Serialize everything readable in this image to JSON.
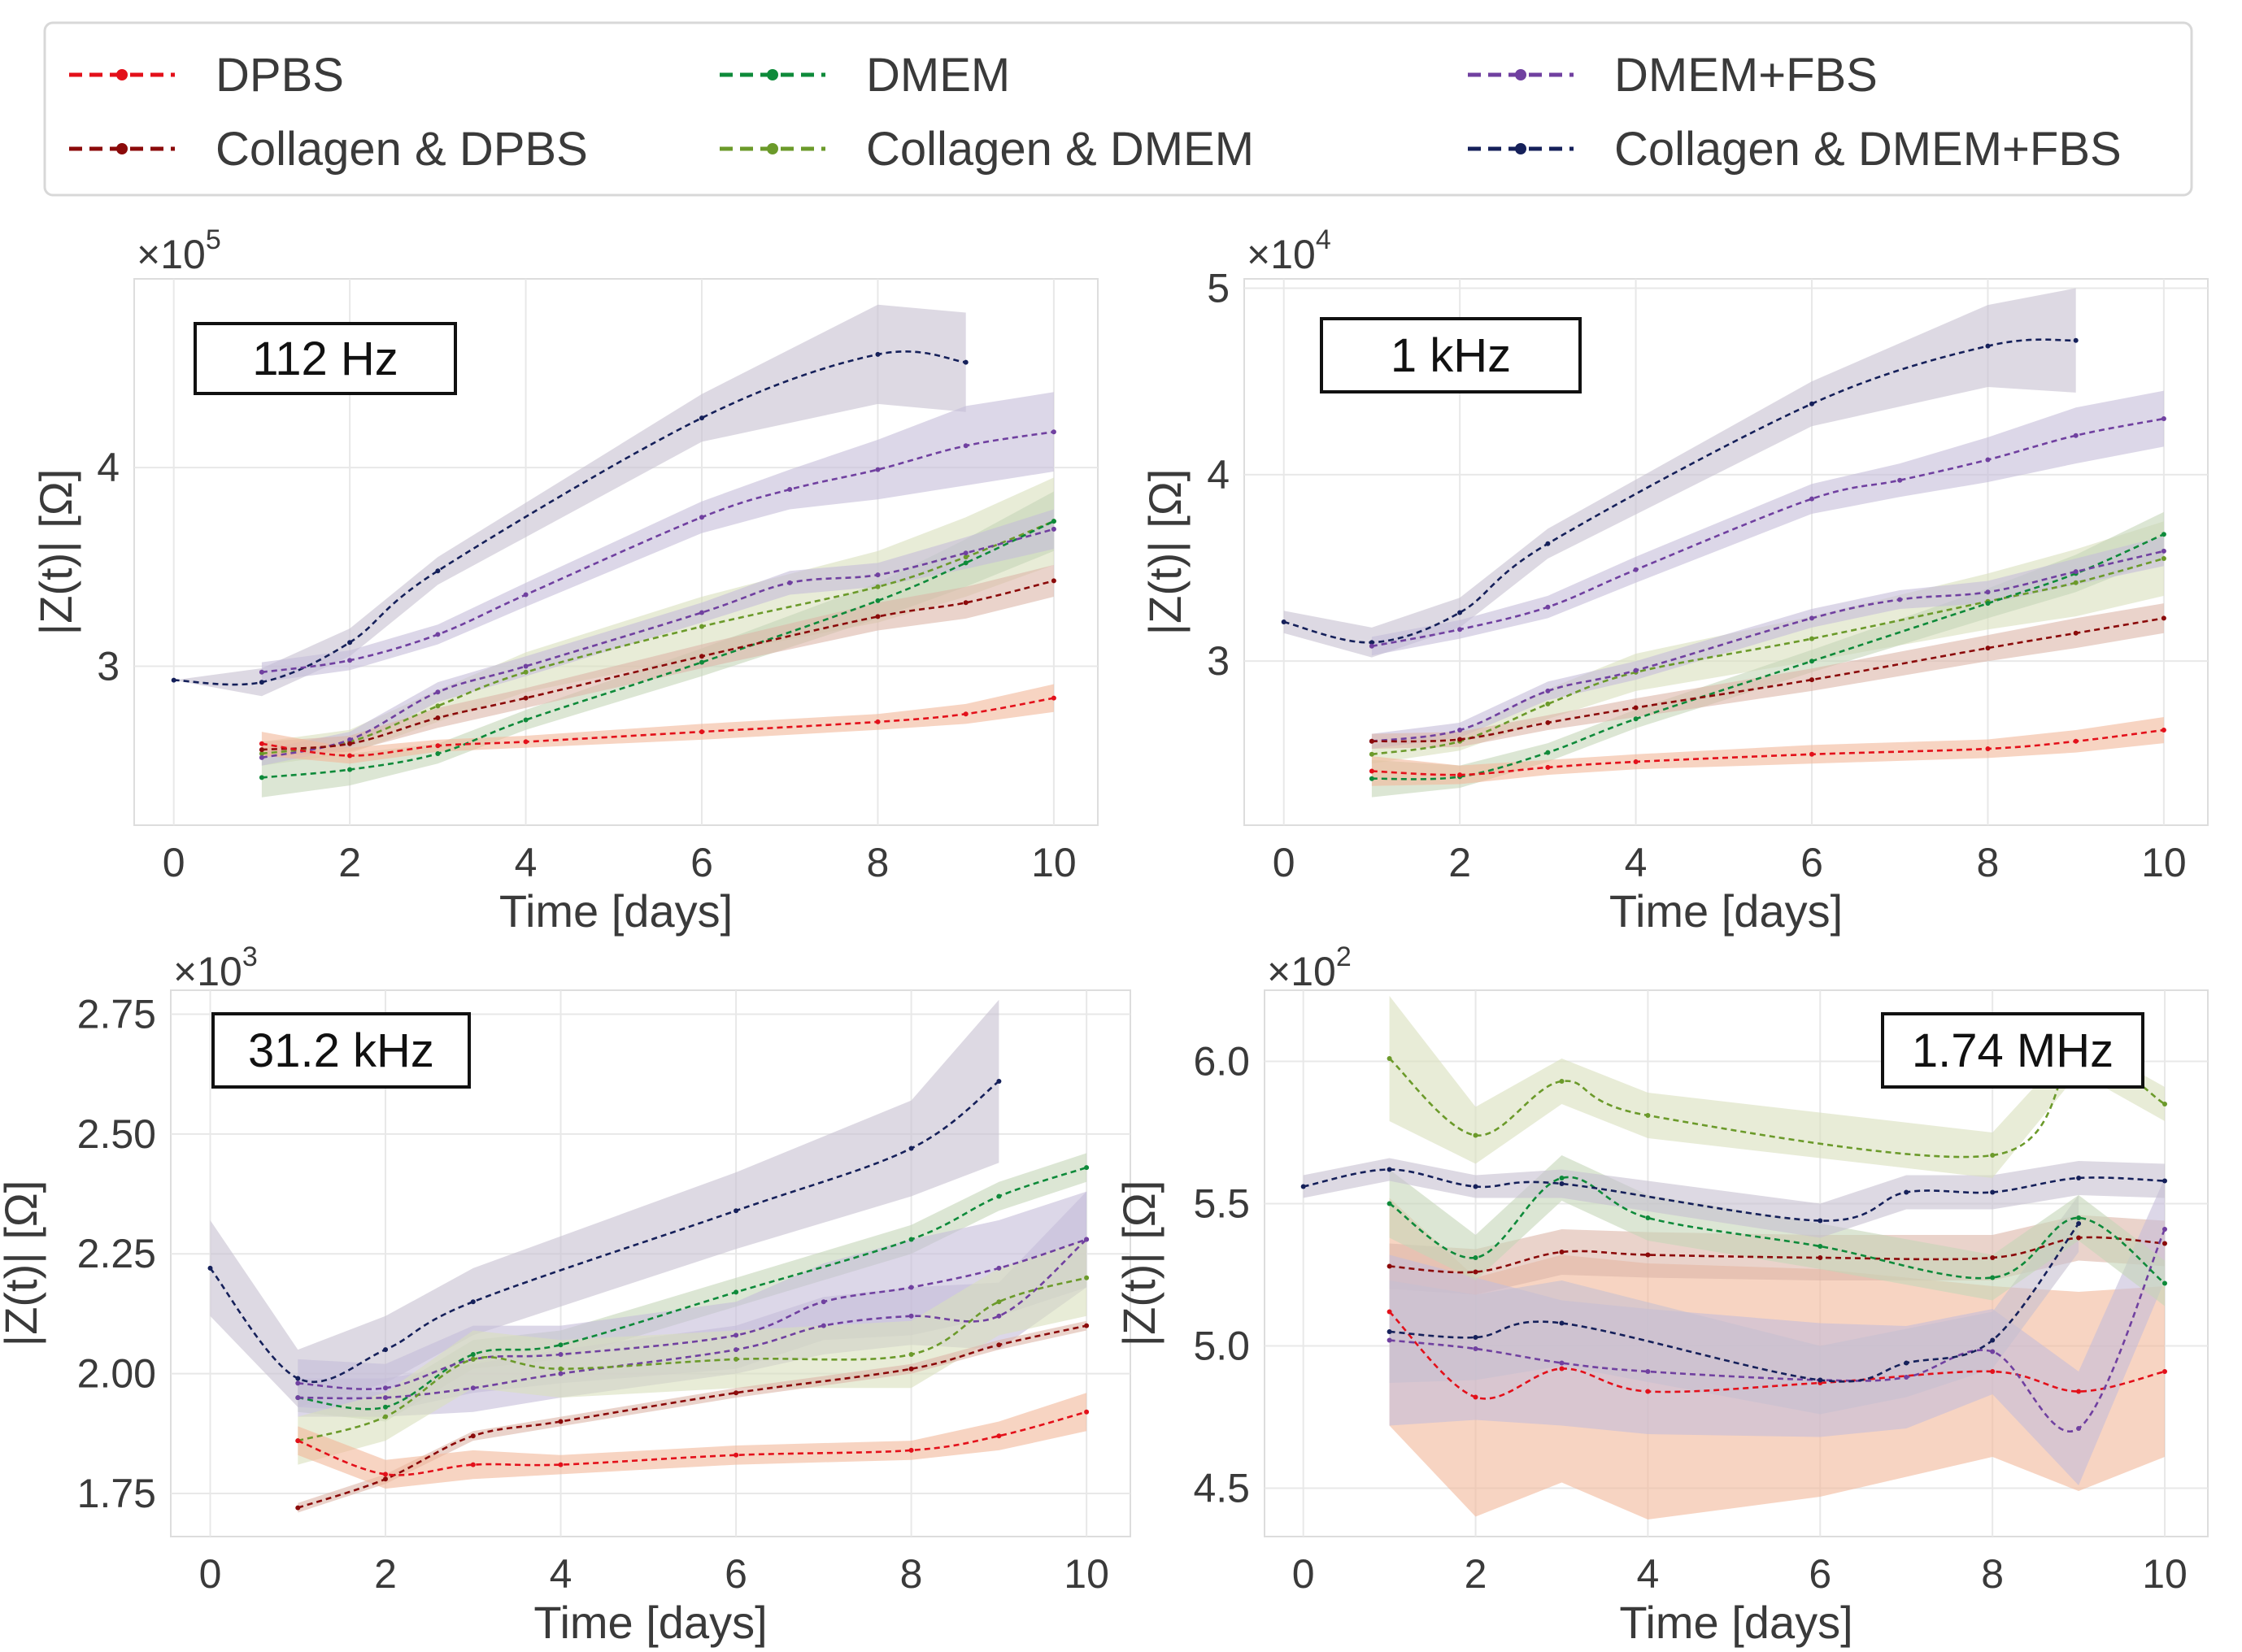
{
  "legend": [
    {
      "label": "DPBS",
      "color": "#e3101a"
    },
    {
      "label": "Collagen & DPBS",
      "color": "#8b0a0a"
    },
    {
      "label": "DMEM",
      "color": "#0e8a3a"
    },
    {
      "label": "Collagen & DMEM",
      "color": "#6b9a2a"
    },
    {
      "label": "DMEM+FBS",
      "color": "#7040a0"
    },
    {
      "label": "Collagen & DMEM+FBS",
      "color": "#15205a"
    }
  ],
  "band_colors": {
    "DPBS": "#f2b79a",
    "Collagen & DPBS": "#dcb6a8",
    "DMEM": "#c4d6b8",
    "Collagen & DMEM": "#d8dfbd",
    "DMEM+FBS": "#c5bcd8",
    "Collagen & DMEM+FBS": "#c6bfd0"
  },
  "chart_data": [
    {
      "type": "line",
      "annotation": "112 Hz",
      "xlabel": "Time [days]",
      "ylabel": "|Z(t)| [Ω]",
      "multiplier": "×10",
      "multiplier_exp": "5",
      "xlim": [
        -0.45,
        10.5
      ],
      "ylim": [
        2.2,
        4.95
      ],
      "xticks": [
        "0",
        "2",
        "4",
        "6",
        "8",
        "10"
      ],
      "xtick_values": [
        0,
        2,
        4,
        6,
        8,
        10
      ],
      "yticks": [
        "3",
        "4"
      ],
      "ytick_values": [
        3,
        4
      ],
      "series": [
        {
          "name": "Collagen & DMEM+FBS",
          "x": [
            0,
            1,
            2,
            3,
            6,
            8,
            9
          ],
          "y": [
            2.93,
            2.92,
            3.12,
            3.48,
            4.25,
            4.57,
            4.53
          ],
          "err": [
            0,
            0.07,
            0.07,
            0.07,
            0.12,
            0.25,
            0.25
          ]
        },
        {
          "name": "DMEM+FBS",
          "x": [
            1,
            2,
            3,
            4,
            6,
            7,
            8,
            9,
            10
          ],
          "y": [
            2.97,
            3.03,
            3.16,
            3.36,
            3.75,
            3.89,
            3.99,
            4.11,
            4.18
          ],
          "err": [
            0.05,
            0.05,
            0.05,
            0.06,
            0.08,
            0.1,
            0.15,
            0.2,
            0.2
          ]
        },
        {
          "name": "Collagen & DMEM",
          "x": [
            1,
            2,
            3,
            4,
            6,
            8,
            9,
            10
          ],
          "y": [
            2.56,
            2.62,
            2.8,
            2.97,
            3.2,
            3.4,
            3.55,
            3.73
          ],
          "err": [
            0.06,
            0.06,
            0.08,
            0.1,
            0.15,
            0.18,
            0.2,
            0.22
          ]
        },
        {
          "name": "DMEM",
          "x": [
            1,
            2,
            3,
            4,
            6,
            8,
            9,
            10
          ],
          "y": [
            2.44,
            2.48,
            2.56,
            2.73,
            3.02,
            3.33,
            3.52,
            3.73
          ],
          "err": [
            0.1,
            0.08,
            0.05,
            0.05,
            0.07,
            0.09,
            0.12,
            0.15
          ]
        },
        {
          "name": "DMEM+FBS",
          "x": [
            1,
            2,
            3,
            4,
            6,
            7,
            8,
            9,
            10
          ],
          "y": [
            2.54,
            2.63,
            2.87,
            3.0,
            3.27,
            3.42,
            3.46,
            3.57,
            3.69
          ],
          "err": [
            0.04,
            0.04,
            0.05,
            0.05,
            0.05,
            0.06,
            0.06,
            0.08,
            0.1
          ]
        },
        {
          "name": "Collagen & DPBS",
          "x": [
            1,
            2,
            3,
            4,
            6,
            8,
            9,
            10
          ],
          "y": [
            2.58,
            2.61,
            2.74,
            2.84,
            3.05,
            3.25,
            3.32,
            3.43
          ],
          "err": [
            0.04,
            0.04,
            0.05,
            0.05,
            0.06,
            0.07,
            0.08,
            0.08
          ]
        },
        {
          "name": "DPBS",
          "x": [
            1,
            2,
            3,
            4,
            6,
            8,
            9,
            10
          ],
          "y": [
            2.61,
            2.55,
            2.6,
            2.62,
            2.67,
            2.72,
            2.76,
            2.84
          ],
          "err": [
            0.06,
            0.04,
            0.03,
            0.03,
            0.04,
            0.04,
            0.05,
            0.07
          ]
        }
      ]
    },
    {
      "type": "line",
      "annotation": "1 kHz",
      "xlabel": "Time [days]",
      "ylabel": "|Z(t)| [Ω]",
      "multiplier": "×10",
      "multiplier_exp": "4",
      "xlim": [
        -0.45,
        10.5
      ],
      "ylim": [
        2.12,
        5.05
      ],
      "xticks": [
        "0",
        "2",
        "4",
        "6",
        "8",
        "10"
      ],
      "xtick_values": [
        0,
        2,
        4,
        6,
        8,
        10
      ],
      "yticks": [
        "3",
        "4",
        "5"
      ],
      "ytick_values": [
        3,
        4,
        5
      ],
      "series": [
        {
          "name": "Collagen & DMEM+FBS",
          "x": [
            0,
            1,
            2,
            3,
            6,
            8,
            9
          ],
          "y": [
            3.21,
            3.1,
            3.26,
            3.63,
            4.38,
            4.69,
            4.72
          ],
          "err": [
            0.06,
            0.08,
            0.08,
            0.08,
            0.12,
            0.22,
            0.28
          ]
        },
        {
          "name": "DMEM+FBS",
          "x": [
            1,
            2,
            3,
            4,
            6,
            7,
            8,
            9,
            10
          ],
          "y": [
            3.08,
            3.17,
            3.29,
            3.49,
            3.87,
            3.97,
            4.08,
            4.21,
            4.3
          ],
          "err": [
            0.05,
            0.05,
            0.06,
            0.07,
            0.08,
            0.09,
            0.12,
            0.15,
            0.15
          ]
        },
        {
          "name": "Collagen & DMEM",
          "x": [
            1,
            2,
            3,
            4,
            6,
            8,
            9,
            10
          ],
          "y": [
            2.5,
            2.57,
            2.77,
            2.94,
            3.12,
            3.32,
            3.42,
            3.55
          ],
          "err": [
            0.05,
            0.05,
            0.08,
            0.1,
            0.12,
            0.15,
            0.18,
            0.2
          ]
        },
        {
          "name": "DMEM",
          "x": [
            1,
            2,
            3,
            4,
            6,
            8,
            9,
            10
          ],
          "y": [
            2.37,
            2.38,
            2.51,
            2.69,
            3.0,
            3.31,
            3.47,
            3.68
          ],
          "err": [
            0.1,
            0.06,
            0.05,
            0.05,
            0.06,
            0.08,
            0.1,
            0.12
          ]
        },
        {
          "name": "DMEM+FBS",
          "x": [
            1,
            2,
            3,
            4,
            6,
            7,
            8,
            9,
            10
          ],
          "y": [
            2.57,
            2.63,
            2.84,
            2.95,
            3.23,
            3.33,
            3.37,
            3.48,
            3.59
          ],
          "err": [
            0.04,
            0.04,
            0.05,
            0.05,
            0.05,
            0.05,
            0.06,
            0.07,
            0.08
          ]
        },
        {
          "name": "Collagen & DPBS",
          "x": [
            1,
            2,
            3,
            4,
            6,
            8,
            9,
            10
          ],
          "y": [
            2.57,
            2.58,
            2.67,
            2.75,
            2.9,
            3.07,
            3.15,
            3.23
          ],
          "err": [
            0.04,
            0.04,
            0.04,
            0.05,
            0.06,
            0.07,
            0.08,
            0.08
          ]
        },
        {
          "name": "DPBS",
          "x": [
            1,
            2,
            3,
            4,
            6,
            8,
            9,
            10
          ],
          "y": [
            2.41,
            2.39,
            2.43,
            2.46,
            2.5,
            2.53,
            2.57,
            2.63
          ],
          "err": [
            0.08,
            0.05,
            0.04,
            0.04,
            0.05,
            0.05,
            0.06,
            0.07
          ]
        }
      ]
    },
    {
      "type": "line",
      "annotation": "31.2 kHz",
      "xlabel": "Time [days]",
      "ylabel": "|Z(t)| [Ω]",
      "multiplier": "×10",
      "multiplier_exp": "3",
      "xlim": [
        -0.45,
        10.5
      ],
      "ylim": [
        1.66,
        2.8
      ],
      "xticks": [
        "0",
        "2",
        "4",
        "6",
        "8",
        "10"
      ],
      "xtick_values": [
        0,
        2,
        4,
        6,
        8,
        10
      ],
      "yticks": [
        "1.75",
        "2.00",
        "2.25",
        "2.50",
        "2.75"
      ],
      "ytick_values": [
        1.75,
        2.0,
        2.25,
        2.5,
        2.75
      ],
      "series": [
        {
          "name": "Collagen & DMEM+FBS",
          "x": [
            0,
            1,
            2,
            3,
            6,
            8,
            9
          ],
          "y": [
            2.22,
            1.99,
            2.05,
            2.15,
            2.34,
            2.47,
            2.61
          ],
          "err": [
            0.1,
            0.06,
            0.07,
            0.07,
            0.08,
            0.1,
            0.17
          ]
        },
        {
          "name": "DMEM",
          "x": [
            1,
            2,
            3,
            4,
            6,
            8,
            9,
            10
          ],
          "y": [
            1.95,
            1.93,
            2.04,
            2.06,
            2.17,
            2.28,
            2.37,
            2.43
          ],
          "err": [
            0.03,
            0.03,
            0.03,
            0.03,
            0.03,
            0.03,
            0.03,
            0.03
          ]
        },
        {
          "name": "DMEM+FBS",
          "x": [
            1,
            2,
            3,
            4,
            6,
            7,
            8,
            9,
            10
          ],
          "y": [
            1.98,
            1.97,
            2.03,
            2.04,
            2.08,
            2.15,
            2.18,
            2.22,
            2.28
          ],
          "err": [
            0.05,
            0.05,
            0.07,
            0.06,
            0.07,
            0.08,
            0.1,
            0.1,
            0.1
          ]
        },
        {
          "name": "DMEM+FBS",
          "x": [
            1,
            2,
            3,
            4,
            6,
            7,
            8,
            9,
            10
          ],
          "y": [
            1.95,
            1.95,
            1.97,
            2.0,
            2.05,
            2.1,
            2.12,
            2.12,
            2.28
          ],
          "err": [
            0.04,
            0.04,
            0.05,
            0.05,
            0.05,
            0.06,
            0.06,
            0.07,
            0.1
          ]
        },
        {
          "name": "Collagen & DMEM",
          "x": [
            1,
            2,
            3,
            4,
            6,
            8,
            9,
            10
          ],
          "y": [
            1.86,
            1.91,
            2.03,
            2.01,
            2.03,
            2.04,
            2.15,
            2.2
          ],
          "err": [
            0.05,
            0.05,
            0.06,
            0.06,
            0.06,
            0.07,
            0.07,
            0.08
          ]
        },
        {
          "name": "Collagen & DPBS",
          "x": [
            1,
            2,
            3,
            4,
            6,
            8,
            9,
            10
          ],
          "y": [
            1.72,
            1.78,
            1.87,
            1.9,
            1.96,
            2.01,
            2.06,
            2.1
          ],
          "err": [
            0.01,
            0.01,
            0.01,
            0.01,
            0.01,
            0.01,
            0.01,
            0.01
          ]
        },
        {
          "name": "DPBS",
          "x": [
            1,
            2,
            3,
            4,
            6,
            8,
            9,
            10
          ],
          "y": [
            1.86,
            1.79,
            1.81,
            1.81,
            1.83,
            1.84,
            1.87,
            1.92
          ],
          "err": [
            0.03,
            0.03,
            0.03,
            0.02,
            0.02,
            0.02,
            0.03,
            0.04
          ]
        }
      ]
    },
    {
      "type": "line",
      "annotation": "1.74 MHz",
      "xlabel": "Time [days]",
      "ylabel": "|Z(t)| [Ω]",
      "multiplier": "×10",
      "multiplier_exp": "2",
      "xlim": [
        -0.45,
        10.5
      ],
      "ylim": [
        4.33,
        6.25
      ],
      "xticks": [
        "0",
        "2",
        "4",
        "6",
        "8",
        "10"
      ],
      "xtick_values": [
        0,
        2,
        4,
        6,
        8,
        10
      ],
      "yticks": [
        "4.5",
        "5.0",
        "5.5",
        "6.0"
      ],
      "ytick_values": [
        4.5,
        5.0,
        5.5,
        6.0
      ],
      "series": [
        {
          "name": "DPBS",
          "x": [
            1,
            2,
            3,
            4,
            6,
            8,
            9,
            10
          ],
          "y": [
            5.12,
            4.82,
            4.92,
            4.84,
            4.87,
            4.91,
            4.84,
            4.91
          ],
          "err": [
            0.4,
            0.42,
            0.4,
            0.45,
            0.4,
            0.3,
            0.35,
            0.3
          ]
        },
        {
          "name": "Collagen & DPBS",
          "x": [
            1,
            2,
            3,
            4,
            6,
            8,
            9,
            10
          ],
          "y": [
            5.28,
            5.26,
            5.33,
            5.32,
            5.31,
            5.31,
            5.38,
            5.36
          ],
          "err": [
            0.08,
            0.08,
            0.08,
            0.08,
            0.08,
            0.08,
            0.08,
            0.08
          ]
        },
        {
          "name": "DMEM+FBS",
          "x": [
            1,
            2,
            3,
            4,
            6,
            7,
            8,
            9,
            10
          ],
          "y": [
            5.02,
            4.99,
            4.94,
            4.91,
            4.88,
            4.89,
            4.98,
            4.71,
            5.41
          ],
          "err": [
            0.3,
            0.25,
            0.22,
            0.22,
            0.2,
            0.18,
            0.15,
            0.2,
            0.18
          ]
        },
        {
          "name": "Collagen & DMEM+FBS",
          "x": [
            1,
            2,
            3,
            6,
            7,
            8,
            9
          ],
          "y": [
            5.05,
            5.03,
            5.08,
            4.88,
            4.94,
            5.02,
            5.43
          ],
          "err": [
            0.18,
            0.15,
            0.15,
            0.12,
            0.12,
            0.1,
            0.1
          ]
        },
        {
          "name": "DMEM",
          "x": [
            1,
            2,
            3,
            4,
            6,
            8,
            9,
            10
          ],
          "y": [
            5.5,
            5.31,
            5.59,
            5.45,
            5.35,
            5.24,
            5.45,
            5.22
          ],
          "err": [
            0.12,
            0.08,
            0.08,
            0.08,
            0.08,
            0.08,
            0.08,
            0.08
          ]
        },
        {
          "name": "Collagen & DMEM+FBS",
          "x": [
            0,
            1,
            2,
            3,
            6,
            7,
            8,
            9,
            10
          ],
          "y": [
            5.56,
            5.62,
            5.56,
            5.57,
            5.44,
            5.54,
            5.54,
            5.59,
            5.58
          ],
          "err": [
            0.04,
            0.04,
            0.04,
            0.05,
            0.06,
            0.06,
            0.06,
            0.06,
            0.06
          ]
        },
        {
          "name": "Collagen & DMEM",
          "x": [
            1,
            2,
            3,
            4,
            8,
            9,
            10
          ],
          "y": [
            6.01,
            5.74,
            5.93,
            5.81,
            5.67,
            6.02,
            5.85
          ],
          "err": [
            0.22,
            0.1,
            0.08,
            0.08,
            0.08,
            0.06,
            0.06
          ]
        }
      ]
    }
  ]
}
